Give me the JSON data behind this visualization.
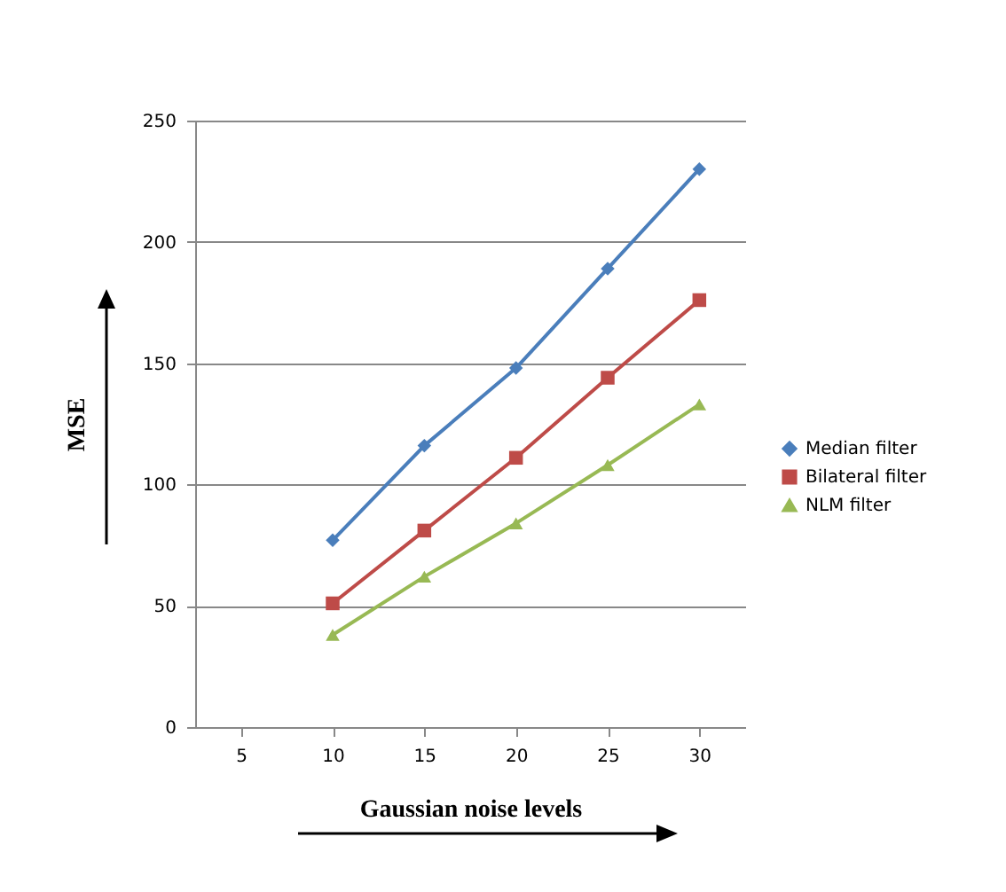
{
  "chart_data": {
    "type": "line",
    "xlabel": "Gaussian noise levels",
    "ylabel": "MSE",
    "categories": [
      "5",
      "10",
      "15",
      "20",
      "25",
      "30"
    ],
    "series": [
      {
        "name": "Median filter",
        "color": "#4a7ebb",
        "marker": "diamond",
        "values": [
          null,
          77,
          116,
          148,
          189,
          230
        ]
      },
      {
        "name": "Bilateral filter",
        "color": "#be4b48",
        "marker": "square",
        "values": [
          null,
          51,
          81,
          111,
          144,
          176
        ]
      },
      {
        "name": "NLM filter",
        "color": "#98b954",
        "marker": "triangle",
        "values": [
          null,
          38,
          62,
          84,
          108,
          133
        ]
      }
    ],
    "ylim": [
      0,
      250
    ],
    "yticks": [
      0,
      50,
      100,
      150,
      200,
      250
    ],
    "grid": "y",
    "legend": "right"
  }
}
